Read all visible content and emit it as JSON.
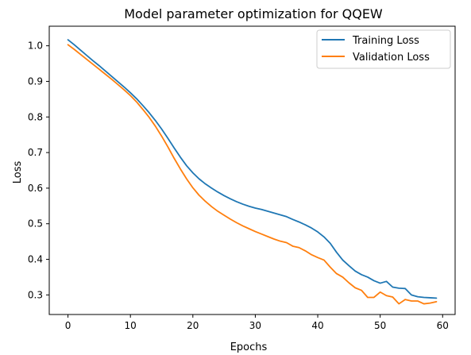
{
  "chart_data": {
    "type": "line",
    "title": "Model parameter optimization for QQEW",
    "xlabel": "Epochs",
    "ylabel": "Loss",
    "xlim": [
      -3,
      62
    ],
    "ylim": [
      0.245,
      1.055
    ],
    "xticks": [
      0,
      10,
      20,
      30,
      40,
      50,
      60
    ],
    "yticks": [
      0.3,
      0.4,
      0.5,
      0.6,
      0.7,
      0.8,
      0.9,
      1.0
    ],
    "xtick_labels": [
      "0",
      "10",
      "20",
      "30",
      "40",
      "50",
      "60"
    ],
    "ytick_labels": [
      "0.3",
      "0.4",
      "0.5",
      "0.6",
      "0.7",
      "0.8",
      "0.9",
      "1.0"
    ],
    "grid": false,
    "legend_position": "top-right",
    "x": [
      0,
      1,
      2,
      3,
      4,
      5,
      6,
      7,
      8,
      9,
      10,
      11,
      12,
      13,
      14,
      15,
      16,
      17,
      18,
      19,
      20,
      21,
      22,
      23,
      24,
      25,
      26,
      27,
      28,
      29,
      30,
      31,
      32,
      33,
      34,
      35,
      36,
      37,
      38,
      39,
      40,
      41,
      42,
      43,
      44,
      45,
      46,
      47,
      48,
      49,
      50,
      51,
      52,
      53,
      54,
      55,
      56,
      57,
      58,
      59
    ],
    "series": [
      {
        "name": "Training Loss",
        "color": "#1f77b4",
        "values": [
          1.017,
          1.003,
          0.988,
          0.973,
          0.958,
          0.944,
          0.929,
          0.914,
          0.899,
          0.884,
          0.868,
          0.851,
          0.832,
          0.812,
          0.79,
          0.766,
          0.74,
          0.713,
          0.687,
          0.663,
          0.643,
          0.626,
          0.612,
          0.6,
          0.589,
          0.579,
          0.57,
          0.562,
          0.555,
          0.549,
          0.544,
          0.54,
          0.535,
          0.53,
          0.525,
          0.52,
          0.512,
          0.505,
          0.497,
          0.488,
          0.477,
          0.463,
          0.445,
          0.42,
          0.398,
          0.382,
          0.367,
          0.357,
          0.35,
          0.34,
          0.333,
          0.338,
          0.322,
          0.319,
          0.318,
          0.3,
          0.295,
          0.293,
          0.292,
          0.291
        ]
      },
      {
        "name": "Validation Loss",
        "color": "#ff7f0e",
        "values": [
          1.003,
          0.99,
          0.976,
          0.962,
          0.948,
          0.934,
          0.92,
          0.906,
          0.891,
          0.876,
          0.86,
          0.842,
          0.821,
          0.799,
          0.774,
          0.746,
          0.716,
          0.684,
          0.654,
          0.626,
          0.601,
          0.58,
          0.563,
          0.548,
          0.535,
          0.524,
          0.513,
          0.503,
          0.494,
          0.486,
          0.478,
          0.471,
          0.464,
          0.457,
          0.451,
          0.447,
          0.437,
          0.433,
          0.424,
          0.413,
          0.405,
          0.398,
          0.378,
          0.36,
          0.35,
          0.334,
          0.32,
          0.313,
          0.293,
          0.293,
          0.308,
          0.298,
          0.294,
          0.275,
          0.287,
          0.283,
          0.283,
          0.275,
          0.277,
          0.281
        ]
      }
    ]
  }
}
